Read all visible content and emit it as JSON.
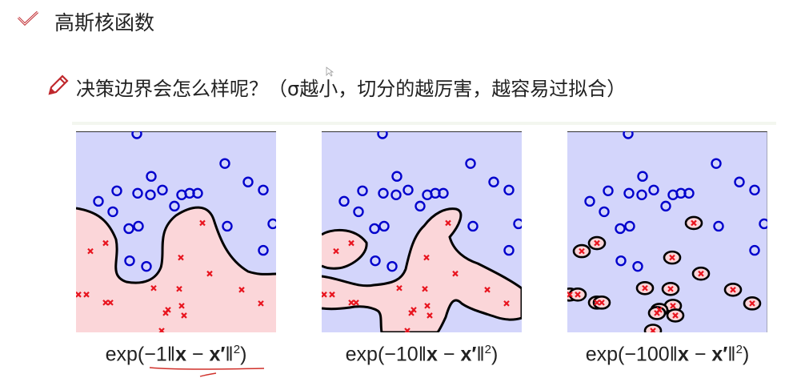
{
  "slide": {
    "title": "高斯核函数",
    "subtitle": "决策边界会怎么样呢？（σ越小，切分的越厉害，越容易过拟合）",
    "title_icon": "check-icon",
    "subtitle_icon": "pencil-icon",
    "accent_color": "#c0282d"
  },
  "chart_data": {
    "type": "scatter",
    "colors": {
      "class_o": "#0000cc",
      "class_x": "#e8141e",
      "region_o": "#d3d5fb",
      "region_x": "#fbd6d9",
      "boundary": "#000000"
    },
    "series": [
      {
        "marker": "circle",
        "points": [
          [
            3.04,
            9.88
          ],
          [
            7.44,
            8.4
          ],
          [
            3.76,
            7.76
          ],
          [
            8.6,
            7.48
          ],
          [
            9.36,
            7.08
          ],
          [
            2.04,
            7.04
          ],
          [
            3.08,
            6.92
          ],
          [
            3.72,
            6.84
          ],
          [
            4.32,
            7.08
          ],
          [
            5.28,
            6.84
          ],
          [
            5.68,
            6.92
          ],
          [
            6.08,
            6.92
          ],
          [
            1.12,
            6.52
          ],
          [
            1.84,
            6.0
          ],
          [
            4.92,
            6.28
          ],
          [
            9.84,
            5.4
          ],
          [
            2.64,
            5.16
          ],
          [
            3.12,
            5.28
          ],
          [
            7.56,
            5.28
          ],
          [
            9.36,
            4.08
          ],
          [
            2.68,
            3.56
          ],
          [
            3.52,
            3.28
          ]
        ]
      },
      {
        "marker": "cross",
        "points": [
          [
            6.32,
            5.44
          ],
          [
            1.48,
            4.44
          ],
          [
            0.72,
            4.04
          ],
          [
            5.24,
            3.72
          ],
          [
            6.68,
            2.92
          ],
          [
            3.88,
            2.2
          ],
          [
            5.16,
            2.16
          ],
          [
            8.28,
            2.12
          ],
          [
            0.12,
            1.88
          ],
          [
            0.52,
            1.88
          ],
          [
            1.48,
            1.48
          ],
          [
            1.72,
            1.48
          ],
          [
            9.24,
            1.44
          ],
          [
            5.28,
            1.32
          ],
          [
            4.6,
            1.12
          ],
          [
            4.48,
            0.96
          ],
          [
            5.4,
            0.84
          ],
          [
            4.28,
            0.08
          ]
        ]
      }
    ],
    "xlim": [
      0,
      10
    ],
    "ylim": [
      0,
      10
    ],
    "panels": [
      {
        "caption": {
          "pre": "exp(−1‖",
          "x": "x",
          "mid": " − ",
          "xp": "x′",
          "post": "‖",
          "sup": "2",
          "end": ")"
        }
      },
      {
        "caption": {
          "pre": "exp(−10‖",
          "x": "x",
          "mid": " − ",
          "xp": "x′",
          "post": "‖",
          "sup": "2",
          "end": ")"
        }
      },
      {
        "caption": {
          "pre": "exp(−100‖",
          "x": "x",
          "mid": " − ",
          "xp": "x′",
          "post": "‖",
          "sup": "2",
          "end": ")"
        }
      }
    ]
  }
}
